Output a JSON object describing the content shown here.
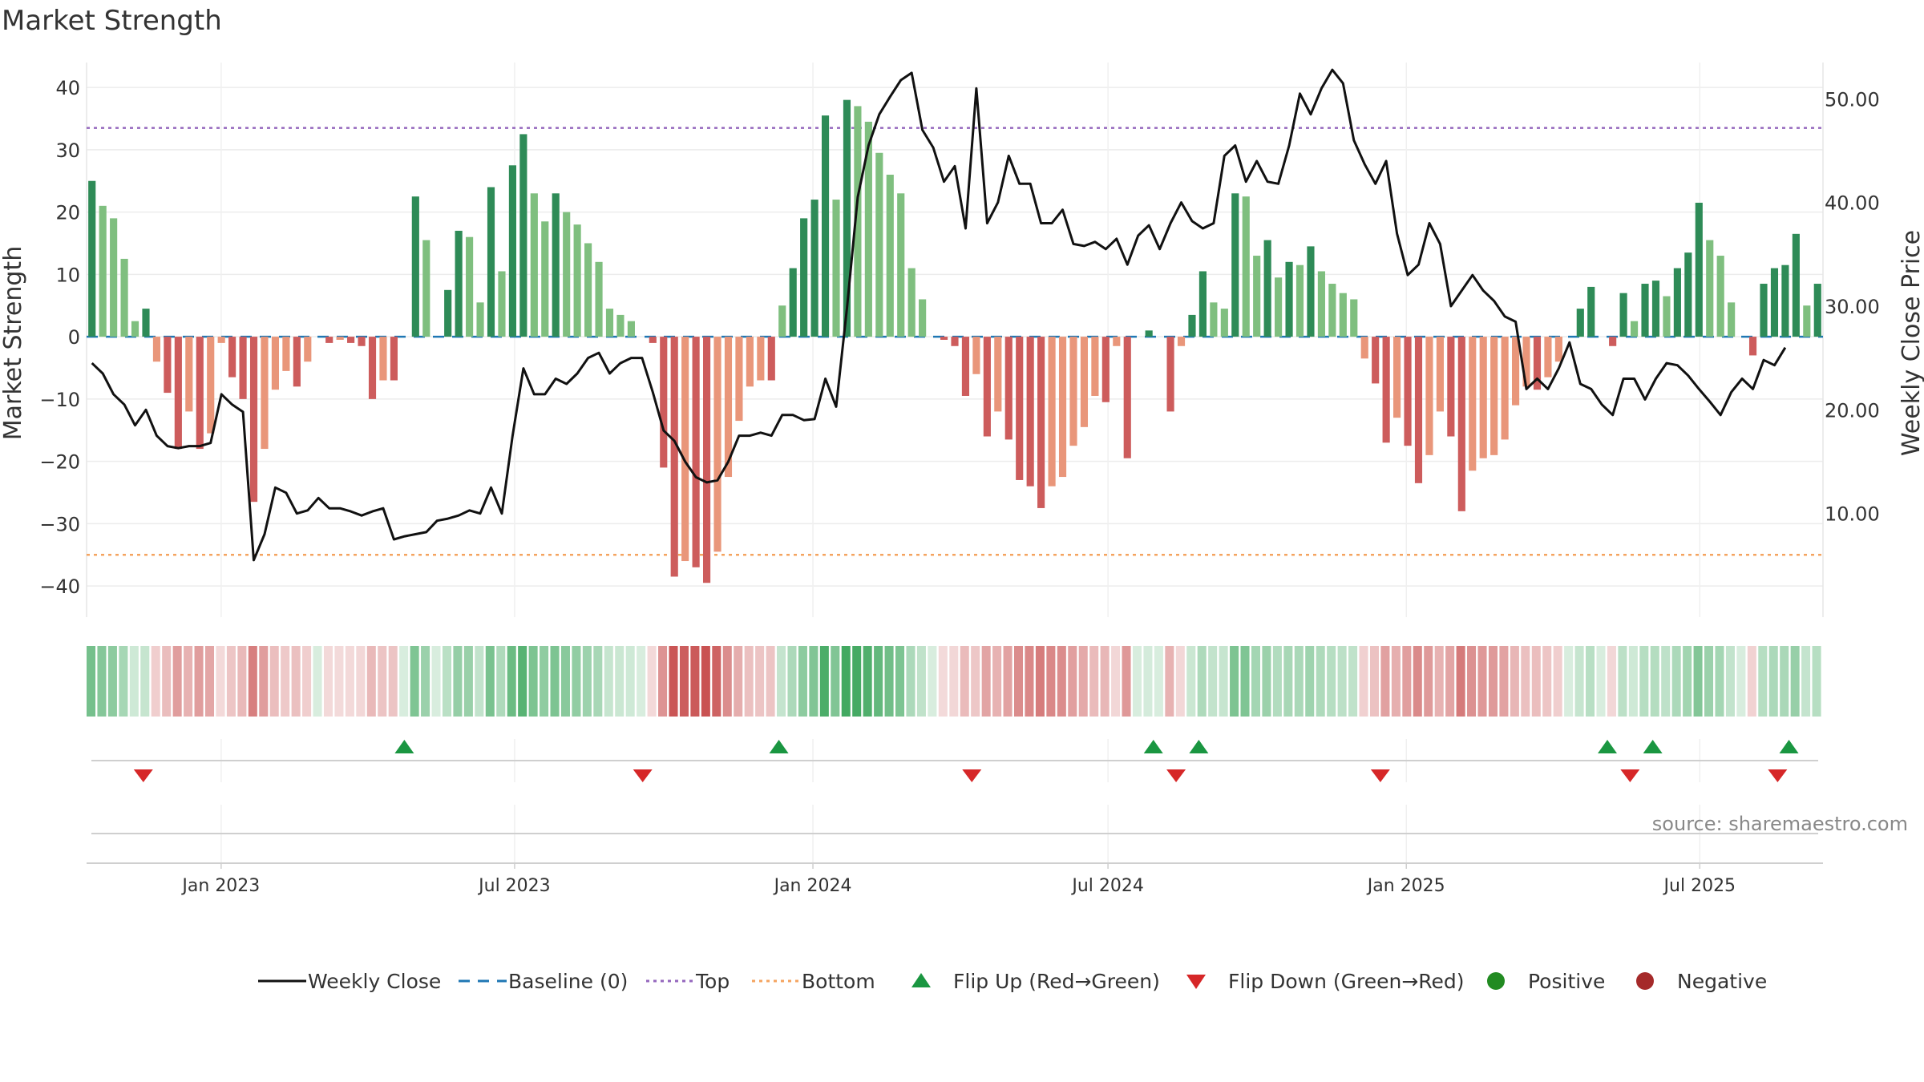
{
  "chart_data": {
    "type": "bar",
    "title": "Market Strength",
    "ylabel": "Market Strength",
    "y2label": "Weekly Close Price",
    "source": "source: sharemaestro.com",
    "ylim": [
      -45,
      44
    ],
    "y2lim": [
      0,
      53.5
    ],
    "yticks": [
      40,
      30,
      20,
      10,
      0,
      -10,
      -20,
      -30,
      -40
    ],
    "yticklabels": [
      "40",
      "30",
      "20",
      "10",
      "0",
      "−10",
      "−20",
      "−30",
      "−40"
    ],
    "y2ticks": [
      50,
      40,
      30,
      20,
      10
    ],
    "y2ticklabels": [
      "50.00",
      "40.00",
      "30.00",
      "20.00",
      "10.00"
    ],
    "top_level": 33.5,
    "bottom_level": -35,
    "x_start": "2022-10-10",
    "x_end": "2025-09-15",
    "xtick_dates": [
      "2023-01-01",
      "2023-07-01",
      "2024-01-01",
      "2024-07-01",
      "2025-01-01",
      "2025-07-01"
    ],
    "xtick_labels": [
      "Jan 2023",
      "Jul 2023",
      "Jan 2024",
      "Jul 2024",
      "Jan 2025",
      "Jul 2025"
    ],
    "strength": [
      25,
      21,
      19,
      12.5,
      2.5,
      4.5,
      -4,
      -9,
      -18,
      -12,
      -18,
      -15.5,
      -1,
      -6.5,
      -10,
      -26.5,
      -18,
      -8.5,
      -5.5,
      -8,
      -4,
      0,
      -1,
      -0.5,
      -1,
      -1.5,
      -10,
      -7,
      -7,
      0,
      22.5,
      15.5,
      0,
      7.5,
      17,
      16,
      5.5,
      24,
      10.5,
      27.5,
      32.5,
      23,
      18.5,
      23,
      20,
      18,
      15,
      12,
      4.5,
      3.5,
      2.5,
      0,
      -1,
      -21,
      -38.5,
      -36,
      -37,
      -39.5,
      -34.5,
      -22.5,
      -13.5,
      -8,
      -7,
      -7,
      5,
      11,
      19,
      22,
      35.5,
      22,
      38,
      37,
      34.5,
      29.5,
      26,
      23,
      11,
      6,
      0,
      -0.5,
      -1.5,
      -9.5,
      -6,
      -16,
      -12,
      -16.5,
      -23,
      -24,
      -27.5,
      -24,
      -22.5,
      -17.5,
      -14.5,
      -9.5,
      -10.5,
      -1.5,
      -19.5,
      0,
      1,
      0,
      -12,
      -1.5,
      3.5,
      10.5,
      5.5,
      4.5,
      23,
      22.5,
      13,
      15.5,
      9.5,
      12,
      11.5,
      14.5,
      10.5,
      8.5,
      7,
      6,
      -3.5,
      -7.5,
      -17,
      -13,
      -17.5,
      -23.5,
      -19,
      -12,
      -16,
      -28,
      -21.5,
      -19.5,
      -19,
      -16.5,
      -11,
      -8,
      -8.5,
      -6.5,
      -4,
      0,
      4.5,
      8,
      0,
      -1.5,
      7,
      2.5,
      8.5,
      9,
      6.5,
      11,
      13.5,
      21.5,
      15.5,
      13,
      5.5,
      0,
      -3,
      8.5,
      11,
      11.5,
      16.5,
      5,
      8.5
    ],
    "weekly_close": [
      24.5,
      23.5,
      21.5,
      20.5,
      18.5,
      20,
      17.5,
      16.5,
      16.3,
      16.5,
      16.5,
      16.8,
      21.5,
      20.5,
      19.8,
      5.5,
      8,
      12.5,
      12,
      10,
      10.3,
      11.5,
      10.5,
      10.5,
      10.2,
      9.8,
      10.2,
      10.5,
      7.5,
      7.8,
      8,
      8.2,
      9.3,
      9.5,
      9.8,
      10.3,
      10,
      12.5,
      10,
      17.5,
      24,
      21.5,
      21.5,
      23,
      22.5,
      23.5,
      25,
      25.5,
      23.5,
      24.5,
      25,
      25,
      21.7,
      18,
      17,
      15,
      13.5,
      13,
      13.2,
      15,
      17.5,
      17.5,
      17.8,
      17.5,
      19.5,
      19.5,
      19,
      19.1,
      23,
      20.3,
      29.8,
      40.5,
      45.5,
      48.5,
      50.2,
      51.8,
      52.5,
      47,
      45.3,
      42,
      43.5,
      37.5,
      51,
      38,
      40,
      44.5,
      41.8,
      41.8,
      38,
      38,
      39.3,
      36,
      35.8,
      36.2,
      35.5,
      36.5,
      34,
      36.8,
      37.8,
      35.5,
      38,
      40,
      38.2,
      37.5,
      38,
      44.5,
      45.5,
      42,
      44,
      42,
      41.8,
      45.5,
      50.5,
      48.5,
      51,
      52.8,
      51.5,
      46,
      43.7,
      41.8,
      44,
      37,
      33,
      34,
      38,
      36,
      30,
      31.5,
      33,
      31.5,
      30.5,
      29,
      28.5,
      22,
      23,
      22,
      24,
      26.5,
      22.5,
      22,
      20.5,
      19.5,
      23,
      23,
      21,
      23,
      24.5,
      24.3,
      23.3,
      22,
      20.8,
      19.5,
      21.7,
      23,
      22,
      24.8,
      24.3,
      26
    ],
    "flip_up_dates": [
      "2023-04-24",
      "2023-12-11",
      "2024-07-29",
      "2024-08-26",
      "2025-05-05",
      "2025-06-02",
      "2025-08-25"
    ],
    "flip_down_dates": [
      "2022-11-14",
      "2023-09-18",
      "2024-04-08",
      "2024-08-12",
      "2024-12-16",
      "2025-05-19",
      "2025-08-18"
    ],
    "colors": {
      "strong_green": "#2e8b57",
      "light_green": "#7fbf7f",
      "strong_red": "#cd5c5c",
      "light_red": "#e9967a",
      "line": "#111111",
      "baseline": "#1f77b4",
      "top": "#9467bd",
      "bottom": "#f4a460",
      "flip_up": "#1a9641",
      "flip_down": "#d62728",
      "positive": "#228b22",
      "negative": "#a52a2a"
    },
    "legend": [
      {
        "label": "Weekly Close",
        "kind": "line"
      },
      {
        "label": "Baseline (0)",
        "kind": "dash"
      },
      {
        "label": "Top",
        "kind": "dot-top"
      },
      {
        "label": "Bottom",
        "kind": "dot-bottom"
      },
      {
        "label": "Flip Up (Red→Green)",
        "kind": "tri-up"
      },
      {
        "label": "Flip Down (Green→Red)",
        "kind": "tri-down"
      },
      {
        "label": "Positive",
        "kind": "dot-pos"
      },
      {
        "label": "Negative",
        "kind": "dot-neg"
      }
    ],
    "legend_position": "bottom"
  }
}
